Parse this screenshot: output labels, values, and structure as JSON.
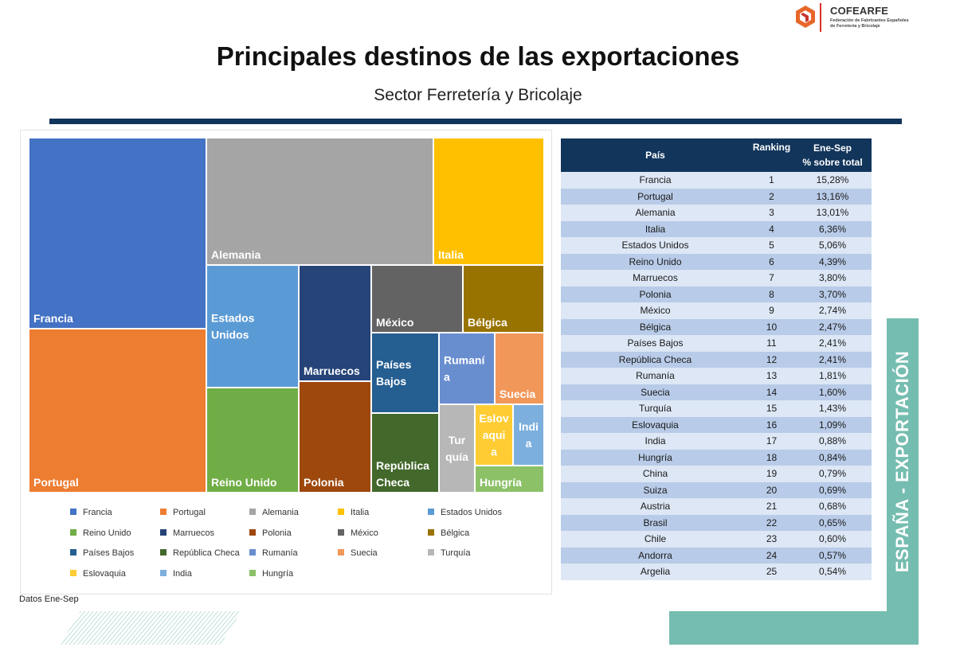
{
  "logo": {
    "name": "COFEARFE",
    "sub1": "Federación de Fabricantes Españoles",
    "sub2": "de Ferretería y Bricolaje"
  },
  "title": "Principales destinos de las exportaciones",
  "subtitle": "Sector Ferretería y Bricolaje",
  "note": "Datos Ene-Sep",
  "side_label": "ESPAÑA - EXPORTACIÓN",
  "table": {
    "headers": {
      "pais": "País",
      "ranking": "Ranking",
      "pct_line1": "Ene-Sep",
      "pct_line2": "% sobre total"
    },
    "rows": [
      {
        "pais": "Francia",
        "rank": "1",
        "pct": "15,28%"
      },
      {
        "pais": "Portugal",
        "rank": "2",
        "pct": "13,16%"
      },
      {
        "pais": "Alemania",
        "rank": "3",
        "pct": "13,01%"
      },
      {
        "pais": "Italia",
        "rank": "4",
        "pct": "6,36%"
      },
      {
        "pais": "Estados Unidos",
        "rank": "5",
        "pct": "5,06%"
      },
      {
        "pais": "Reino Unido",
        "rank": "6",
        "pct": "4,39%"
      },
      {
        "pais": "Marruecos",
        "rank": "7",
        "pct": "3,80%"
      },
      {
        "pais": "Polonia",
        "rank": "8",
        "pct": "3,70%"
      },
      {
        "pais": "México",
        "rank": "9",
        "pct": "2,74%"
      },
      {
        "pais": "Bélgica",
        "rank": "10",
        "pct": "2,47%"
      },
      {
        "pais": "Países Bajos",
        "rank": "11",
        "pct": "2,41%"
      },
      {
        "pais": "República Checa",
        "rank": "12",
        "pct": "2,41%"
      },
      {
        "pais": "Rumanía",
        "rank": "13",
        "pct": "1,81%"
      },
      {
        "pais": "Suecia",
        "rank": "14",
        "pct": "1,60%"
      },
      {
        "pais": "Turquía",
        "rank": "15",
        "pct": "1,43%"
      },
      {
        "pais": "Eslovaquia",
        "rank": "16",
        "pct": "1,09%"
      },
      {
        "pais": "India",
        "rank": "17",
        "pct": "0,88%"
      },
      {
        "pais": "Hungría",
        "rank": "18",
        "pct": "0,84%"
      },
      {
        "pais": "China",
        "rank": "19",
        "pct": "0,79%"
      },
      {
        "pais": "Suiza",
        "rank": "20",
        "pct": "0,69%"
      },
      {
        "pais": "Austria",
        "rank": "21",
        "pct": "0,68%"
      },
      {
        "pais": "Brasil",
        "rank": "22",
        "pct": "0,65%"
      },
      {
        "pais": "Chile",
        "rank": "23",
        "pct": "0,60%"
      },
      {
        "pais": "Andorra",
        "rank": "24",
        "pct": "0,57%"
      },
      {
        "pais": "Argelia",
        "rank": "25",
        "pct": "0,54%"
      }
    ]
  },
  "chart_data": {
    "type": "treemap",
    "legend_position": "bottom",
    "items": [
      {
        "name": "Francia",
        "value": 15.28,
        "color": "#4472c4",
        "label": "Francia"
      },
      {
        "name": "Portugal",
        "value": 13.16,
        "color": "#ed7d31",
        "label": "Portugal"
      },
      {
        "name": "Alemania",
        "value": 13.01,
        "color": "#a5a5a5",
        "label": "Alemania"
      },
      {
        "name": "Italia",
        "value": 6.36,
        "color": "#ffc000",
        "label": "Italia"
      },
      {
        "name": "Estados Unidos",
        "value": 5.06,
        "color": "#5b9bd5",
        "label": "Estados\nUnidos"
      },
      {
        "name": "Reino Unido",
        "value": 4.39,
        "color": "#70ad47",
        "label": "Reino Unido"
      },
      {
        "name": "Marruecos",
        "value": 3.8,
        "color": "#264478",
        "label": "Marruecos"
      },
      {
        "name": "Polonia",
        "value": 3.7,
        "color": "#9e480e",
        "label": "Polonia"
      },
      {
        "name": "México",
        "value": 2.74,
        "color": "#636363",
        "label": "México"
      },
      {
        "name": "Bélgica",
        "value": 2.47,
        "color": "#997300",
        "label": "Bélgica"
      },
      {
        "name": "Países Bajos",
        "value": 2.41,
        "color": "#255e91",
        "label": "Países\nBajos"
      },
      {
        "name": "República Checa",
        "value": 2.41,
        "color": "#43682b",
        "label": "República\nCheca"
      },
      {
        "name": "Rumanía",
        "value": 1.81,
        "color": "#698ed0",
        "label": "Rumaní\na"
      },
      {
        "name": "Suecia",
        "value": 1.6,
        "color": "#f1975a",
        "label": "Suecia"
      },
      {
        "name": "Turquía",
        "value": 1.43,
        "color": "#b7b7b7",
        "label": "Tur\nquía"
      },
      {
        "name": "Eslovaquia",
        "value": 1.09,
        "color": "#ffcd33",
        "label": "Eslov\naqui\na"
      },
      {
        "name": "India",
        "value": 0.88,
        "color": "#7cafdd",
        "label": "Indi\na"
      },
      {
        "name": "Hungría",
        "value": 0.84,
        "color": "#8cc168",
        "label": "Hungría"
      }
    ]
  }
}
